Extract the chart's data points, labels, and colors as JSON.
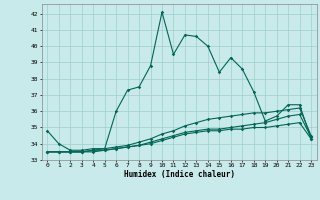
{
  "xlabel": "Humidex (Indice chaleur)",
  "bg_color": "#c8eaea",
  "grid_color": "#a0cccc",
  "line_color": "#006655",
  "xlim": [
    -0.5,
    23.5
  ],
  "ylim": [
    33,
    42.6
  ],
  "yticks": [
    33,
    34,
    35,
    36,
    37,
    38,
    39,
    40,
    41,
    42
  ],
  "xticks": [
    0,
    1,
    2,
    3,
    4,
    5,
    6,
    7,
    8,
    9,
    10,
    11,
    12,
    13,
    14,
    15,
    16,
    17,
    18,
    19,
    20,
    21,
    22,
    23
  ],
  "line1_x": [
    0,
    1,
    2,
    3,
    4,
    5,
    6,
    7,
    8,
    9,
    10,
    11,
    12,
    13,
    14,
    15,
    16,
    17,
    18,
    19,
    20,
    21,
    22,
    23
  ],
  "line1_y": [
    34.8,
    34.0,
    33.6,
    33.6,
    33.7,
    33.7,
    36.0,
    37.3,
    37.5,
    38.8,
    42.1,
    39.5,
    40.7,
    40.6,
    40.0,
    38.4,
    39.3,
    38.6,
    37.2,
    35.4,
    35.7,
    36.4,
    36.4,
    34.3
  ],
  "line2_x": [
    0,
    1,
    2,
    3,
    4,
    5,
    6,
    7,
    8,
    9,
    10,
    11,
    12,
    13,
    14,
    15,
    16,
    17,
    18,
    19,
    20,
    21,
    22,
    23
  ],
  "line2_y": [
    33.5,
    33.5,
    33.5,
    33.5,
    33.6,
    33.6,
    33.7,
    33.8,
    33.9,
    34.1,
    34.3,
    34.5,
    34.7,
    34.8,
    34.9,
    34.9,
    35.0,
    35.1,
    35.2,
    35.3,
    35.5,
    35.7,
    35.8,
    34.4
  ],
  "line3_x": [
    0,
    1,
    2,
    3,
    4,
    5,
    6,
    7,
    8,
    9,
    10,
    11,
    12,
    13,
    14,
    15,
    16,
    17,
    18,
    19,
    20,
    21,
    22,
    23
  ],
  "line3_y": [
    33.5,
    33.5,
    33.5,
    33.5,
    33.6,
    33.7,
    33.8,
    33.9,
    34.1,
    34.3,
    34.6,
    34.8,
    35.1,
    35.3,
    35.5,
    35.6,
    35.7,
    35.8,
    35.9,
    35.9,
    36.0,
    36.1,
    36.2,
    34.5
  ],
  "line4_x": [
    0,
    1,
    2,
    3,
    4,
    5,
    6,
    7,
    8,
    9,
    10,
    11,
    12,
    13,
    14,
    15,
    16,
    17,
    18,
    19,
    20,
    21,
    22,
    23
  ],
  "line4_y": [
    33.5,
    33.5,
    33.5,
    33.5,
    33.5,
    33.6,
    33.7,
    33.8,
    33.9,
    34.0,
    34.2,
    34.4,
    34.6,
    34.7,
    34.8,
    34.8,
    34.9,
    34.9,
    35.0,
    35.0,
    35.1,
    35.2,
    35.3,
    34.3
  ]
}
